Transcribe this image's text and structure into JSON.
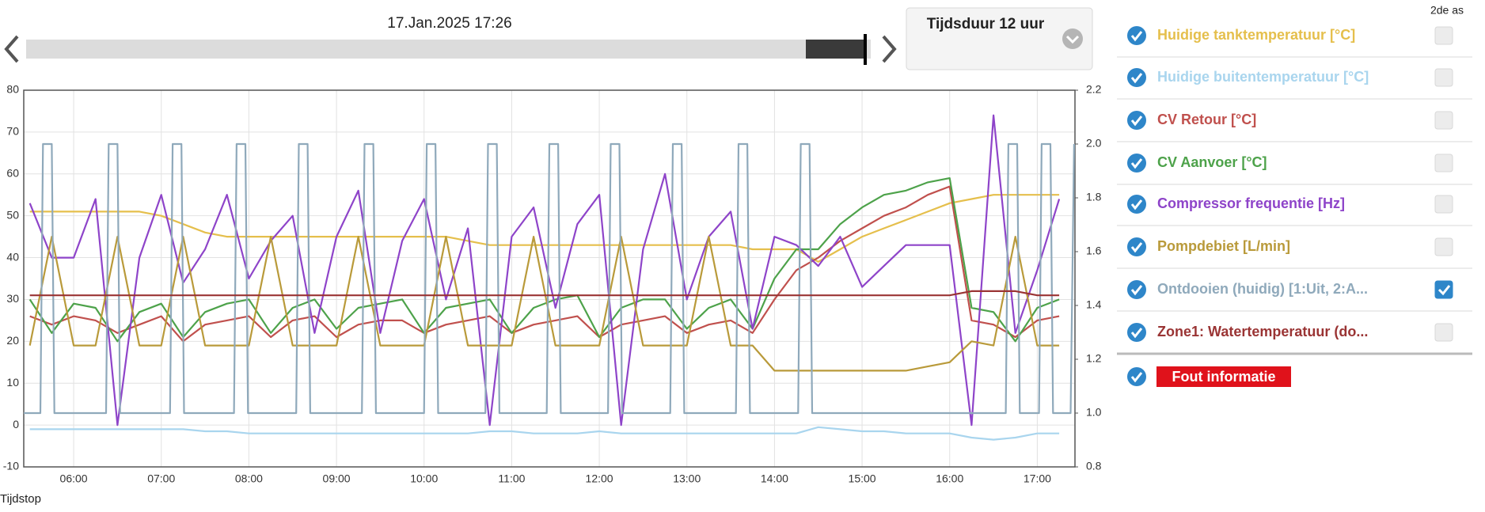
{
  "controls": {
    "date_label": "17.Jan.2025 17:26",
    "duration_label": "Tijdsduur 12 uur",
    "x_caption": "Tijdstop",
    "second_axis_header": "2de as",
    "error_label": "Fout informatie"
  },
  "chart_data": {
    "type": "line",
    "xlim": [
      5.43,
      17.43
    ],
    "xticks": [
      {
        "value": 6,
        "label": "06:00"
      },
      {
        "value": 7,
        "label": "07:00"
      },
      {
        "value": 8,
        "label": "08:00"
      },
      {
        "value": 9,
        "label": "09:00"
      },
      {
        "value": 10,
        "label": "10:00"
      },
      {
        "value": 11,
        "label": "11:00"
      },
      {
        "value": 12,
        "label": "12:00"
      },
      {
        "value": 13,
        "label": "13:00"
      },
      {
        "value": 14,
        "label": "14:00"
      },
      {
        "value": 15,
        "label": "15:00"
      },
      {
        "value": 16,
        "label": "16:00"
      },
      {
        "value": 17,
        "label": "17:00"
      }
    ],
    "ylim": [
      -10,
      80
    ],
    "yticks": [
      -10,
      0,
      10,
      20,
      30,
      40,
      50,
      60,
      70,
      80
    ],
    "y2lim": [
      0.8,
      2.2
    ],
    "y2ticks": [
      0.8,
      {
        "value": 1,
        "label": "1.0"
      },
      1.2,
      1.4,
      1.6,
      1.8,
      {
        "value": 2,
        "label": "2.0"
      },
      2.2
    ],
    "grid": true,
    "x": [
      5.5,
      5.75,
      6.0,
      6.25,
      6.5,
      6.75,
      7.0,
      7.25,
      7.5,
      7.75,
      8.0,
      8.25,
      8.5,
      8.75,
      9.0,
      9.25,
      9.5,
      9.75,
      10.0,
      10.25,
      10.5,
      10.75,
      11.0,
      11.25,
      11.5,
      11.75,
      12.0,
      12.25,
      12.5,
      12.75,
      13.0,
      13.25,
      13.5,
      13.75,
      14.0,
      14.25,
      14.5,
      14.75,
      15.0,
      15.25,
      15.5,
      15.75,
      16.0,
      16.25,
      16.5,
      16.75,
      17.0,
      17.25
    ],
    "series": [
      {
        "name": "Huidige tanktemperatuur [°C]",
        "color": "#e5bf4c",
        "values": [
          51,
          51,
          51,
          51,
          51,
          51,
          50,
          48,
          46,
          45,
          45,
          45,
          45,
          45,
          45,
          45,
          45,
          45,
          45,
          45,
          44,
          43,
          43,
          43,
          43,
          43,
          43,
          43,
          43,
          43,
          43,
          43,
          43,
          42,
          42,
          42,
          39,
          42,
          45,
          47,
          49,
          51,
          53,
          54,
          55,
          55,
          55,
          55
        ]
      },
      {
        "name": "Huidige buitentemperatuur [°C]",
        "color": "#a9d5ee",
        "values": [
          -1,
          -1,
          -1,
          -1,
          -1,
          -1,
          -1,
          -1,
          -1.5,
          -1.5,
          -2,
          -2,
          -2,
          -2,
          -2,
          -2,
          -2,
          -2,
          -2,
          -2,
          -2,
          -1.5,
          -1.5,
          -2,
          -2,
          -2,
          -1.5,
          -2,
          -2,
          -2,
          -2,
          -2,
          -2,
          -2,
          -2,
          -2,
          -0.5,
          -1,
          -1.5,
          -1.5,
          -2,
          -2,
          -2,
          -3,
          -3.5,
          -3,
          -2,
          -2
        ]
      },
      {
        "name": "CV Retour [°C]",
        "color": "#c0504d",
        "values": [
          26,
          24,
          26,
          25,
          22,
          24,
          26,
          20,
          24,
          25,
          26,
          21,
          25,
          26,
          21,
          24,
          25,
          25,
          22,
          24,
          25,
          26,
          22,
          24,
          25,
          26,
          21,
          24,
          25,
          26,
          22,
          24,
          25,
          22,
          30,
          37,
          40,
          44,
          47,
          50,
          52,
          55,
          57,
          25,
          24,
          21,
          25,
          26
        ]
      },
      {
        "name": "CV Aanvoer [°C]",
        "color": "#4da24a",
        "values": [
          30,
          22,
          29,
          28,
          20,
          27,
          29,
          21,
          27,
          29,
          30,
          22,
          28,
          30,
          23,
          28,
          29,
          30,
          22,
          28,
          29,
          30,
          22,
          28,
          30,
          31,
          21,
          28,
          30,
          30,
          23,
          28,
          30,
          23,
          35,
          42,
          42,
          48,
          52,
          55,
          56,
          58,
          59,
          28,
          27,
          20,
          28,
          30
        ]
      },
      {
        "name": "Compressor frequentie [Hz]",
        "color": "#8e44c9",
        "values": [
          53,
          40,
          40,
          54,
          0,
          40,
          55,
          34,
          42,
          55,
          35,
          44,
          50,
          22,
          45,
          56,
          22,
          44,
          54,
          30,
          47,
          0,
          45,
          52,
          28,
          48,
          55,
          0,
          42,
          60,
          30,
          45,
          51,
          23,
          45,
          43,
          38,
          45,
          33,
          38,
          43,
          43,
          43,
          0,
          74,
          22,
          37,
          54
        ]
      },
      {
        "name": "Pompdebiet [L/min]",
        "color": "#b99a3a",
        "values": [
          19,
          45,
          19,
          19,
          45,
          19,
          19,
          45,
          19,
          19,
          19,
          45,
          19,
          19,
          19,
          45,
          19,
          19,
          19,
          45,
          19,
          19,
          19,
          45,
          19,
          19,
          19,
          45,
          19,
          19,
          19,
          45,
          19,
          19,
          13,
          13,
          13,
          13,
          13,
          13,
          13,
          14,
          15,
          20,
          19,
          45,
          19,
          19
        ]
      },
      {
        "name": "Ontdooien (huidig) [1:Uit, 2:A...",
        "color": "#8fa9bb",
        "axis": "y2",
        "x": [
          5.43,
          5.62,
          5.65,
          5.75,
          5.78,
          6.37,
          6.4,
          6.5,
          6.53,
          7.1,
          7.13,
          7.23,
          7.26,
          7.83,
          7.86,
          7.96,
          7.99,
          8.54,
          8.57,
          8.67,
          8.7,
          9.29,
          9.32,
          9.42,
          9.45,
          10.0,
          10.03,
          10.13,
          10.16,
          10.7,
          10.73,
          10.83,
          10.86,
          11.4,
          11.43,
          11.53,
          11.56,
          12.1,
          12.13,
          12.23,
          12.26,
          12.81,
          12.84,
          12.94,
          12.97,
          13.56,
          13.59,
          13.69,
          13.72,
          14.27,
          14.3,
          14.4,
          14.43,
          16.64,
          16.67,
          16.77,
          16.8,
          17.02,
          17.05,
          17.15,
          17.18,
          17.38,
          17.42
        ],
        "values": [
          1,
          1,
          2,
          2,
          1,
          1,
          2,
          2,
          1,
          1,
          2,
          2,
          1,
          1,
          2,
          2,
          1,
          1,
          2,
          2,
          1,
          1,
          2,
          2,
          1,
          1,
          2,
          2,
          1,
          1,
          2,
          2,
          1,
          1,
          2,
          2,
          1,
          1,
          2,
          2,
          1,
          1,
          2,
          2,
          1,
          1,
          2,
          2,
          1,
          1,
          2,
          2,
          1,
          1,
          2,
          2,
          1,
          1,
          2,
          2,
          1,
          1,
          2
        ]
      },
      {
        "name": "Zone1: Watertemperatuur (do...",
        "color": "#9a3434",
        "values": [
          31,
          31,
          31,
          31,
          31,
          31,
          31,
          31,
          31,
          31,
          31,
          31,
          31,
          31,
          31,
          31,
          31,
          31,
          31,
          31,
          31,
          31,
          31,
          31,
          31,
          31,
          31,
          31,
          31,
          31,
          31,
          31,
          31,
          31,
          31,
          31,
          31,
          31,
          31,
          31,
          31,
          31,
          31,
          32,
          32,
          32,
          31,
          31
        ]
      }
    ]
  }
}
